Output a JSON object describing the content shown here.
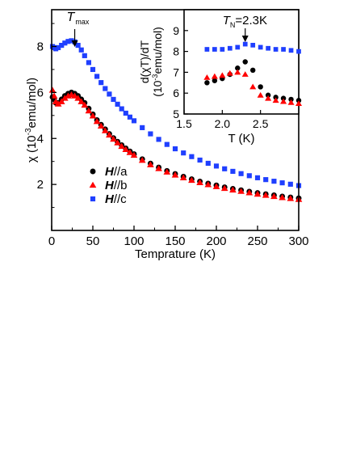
{
  "chart_data": [
    {
      "type": "scatter",
      "xlabel": "Temprature (K)",
      "ylabel": "χ (10",
      "ylabel_exp": "-3",
      "ylabel_tail": "emu/mol)",
      "xlim": [
        0,
        300
      ],
      "ylim": [
        0,
        9.6
      ],
      "xticks": [
        0,
        50,
        100,
        150,
        200,
        250,
        300
      ],
      "yticks": [
        2,
        4,
        6,
        8
      ],
      "annotation": {
        "text": "T",
        "sub": "max",
        "x": 28,
        "y": 8.25
      },
      "legend": {
        "placement": "lower-left",
        "entries": [
          {
            "bold": "H",
            "suffix": "//a"
          },
          {
            "bold": "H",
            "suffix": "//b"
          },
          {
            "bold": "H",
            "suffix": "//c"
          }
        ]
      },
      "series": [
        {
          "name": "H//a",
          "marker": "circle",
          "color": "#000000",
          "x": [
            1,
            3,
            5,
            8,
            12,
            16,
            20,
            24,
            28,
            32,
            36,
            40,
            45,
            50,
            55,
            60,
            65,
            70,
            75,
            80,
            85,
            90,
            95,
            100,
            110,
            120,
            130,
            140,
            150,
            160,
            170,
            180,
            190,
            200,
            210,
            220,
            230,
            240,
            250,
            260,
            270,
            280,
            290,
            300
          ],
          "y": [
            5.8,
            5.7,
            5.55,
            5.55,
            5.7,
            5.85,
            5.95,
            6.0,
            5.95,
            5.85,
            5.7,
            5.55,
            5.3,
            5.05,
            4.8,
            4.6,
            4.4,
            4.2,
            4.02,
            3.86,
            3.71,
            3.57,
            3.44,
            3.32,
            3.1,
            2.91,
            2.74,
            2.59,
            2.46,
            2.34,
            2.23,
            2.13,
            2.04,
            1.96,
            1.88,
            1.81,
            1.75,
            1.69,
            1.63,
            1.58,
            1.53,
            1.48,
            1.44,
            1.4
          ]
        },
        {
          "name": "H//b",
          "marker": "triangle",
          "color": "#ff0000",
          "x": [
            1,
            3,
            5,
            8,
            12,
            16,
            20,
            24,
            28,
            32,
            36,
            40,
            45,
            50,
            55,
            60,
            65,
            70,
            75,
            80,
            85,
            90,
            95,
            100,
            110,
            120,
            130,
            140,
            150,
            160,
            170,
            180,
            190,
            200,
            210,
            220,
            230,
            240,
            250,
            260,
            270,
            280,
            290,
            300
          ],
          "y": [
            6.1,
            5.85,
            5.6,
            5.5,
            5.6,
            5.75,
            5.85,
            5.9,
            5.85,
            5.75,
            5.6,
            5.45,
            5.2,
            4.98,
            4.74,
            4.54,
            4.34,
            4.15,
            3.97,
            3.81,
            3.66,
            3.52,
            3.39,
            3.27,
            3.05,
            2.86,
            2.69,
            2.54,
            2.41,
            2.29,
            2.18,
            2.08,
            1.99,
            1.91,
            1.83,
            1.76,
            1.7,
            1.64,
            1.58,
            1.53,
            1.48,
            1.43,
            1.39,
            1.35
          ]
        },
        {
          "name": "H//c",
          "marker": "square",
          "color": "#1f3fff",
          "x": [
            1,
            3,
            5,
            8,
            12,
            16,
            20,
            24,
            28,
            32,
            36,
            40,
            45,
            50,
            55,
            60,
            65,
            70,
            75,
            80,
            85,
            90,
            95,
            100,
            110,
            120,
            130,
            140,
            150,
            160,
            170,
            180,
            190,
            200,
            210,
            220,
            230,
            240,
            250,
            260,
            270,
            280,
            290,
            300
          ],
          "y": [
            8.0,
            7.95,
            7.9,
            7.95,
            8.05,
            8.15,
            8.22,
            8.25,
            8.2,
            8.05,
            7.85,
            7.6,
            7.3,
            7.0,
            6.7,
            6.43,
            6.17,
            5.93,
            5.7,
            5.49,
            5.29,
            5.1,
            4.93,
            4.77,
            4.47,
            4.2,
            3.96,
            3.74,
            3.55,
            3.37,
            3.21,
            3.06,
            2.92,
            2.8,
            2.68,
            2.57,
            2.47,
            2.38,
            2.29,
            2.21,
            2.14,
            2.07,
            2.01,
            1.95
          ]
        }
      ]
    },
    {
      "type": "scatter",
      "inset": true,
      "xlabel": "T (K)",
      "ylabel_line1": "d(χT)/dT",
      "ylabel_line2": "(10",
      "ylabel_exp": "-3",
      "ylabel_tail": "emu/mol)",
      "xlim": [
        1.5,
        3.0
      ],
      "ylim": [
        5,
        10
      ],
      "xticks": [
        1.5,
        2.0,
        2.5
      ],
      "yticks": [
        5,
        6,
        7,
        8,
        9
      ],
      "annotation": {
        "text": "T",
        "sub": "N",
        "tail": "=2.3K",
        "x": 2.3,
        "y": 8.3
      },
      "series": [
        {
          "name": "H//a",
          "marker": "circle",
          "color": "#000000",
          "x": [
            1.8,
            1.9,
            2.0,
            2.1,
            2.2,
            2.3,
            2.4,
            2.5,
            2.6,
            2.7,
            2.8,
            2.9,
            3.0
          ],
          "y": [
            6.5,
            6.6,
            6.7,
            6.9,
            7.2,
            7.5,
            7.1,
            6.3,
            5.9,
            5.8,
            5.75,
            5.7,
            5.65
          ]
        },
        {
          "name": "H//b",
          "marker": "triangle",
          "color": "#ff0000",
          "x": [
            1.8,
            1.9,
            2.0,
            2.1,
            2.2,
            2.3,
            2.4,
            2.5,
            2.6,
            2.7,
            2.8,
            2.9,
            3.0
          ],
          "y": [
            6.75,
            6.8,
            6.85,
            6.95,
            7.0,
            6.9,
            6.3,
            5.9,
            5.75,
            5.65,
            5.6,
            5.55,
            5.5
          ]
        },
        {
          "name": "H//c",
          "marker": "square",
          "color": "#1f3fff",
          "x": [
            1.8,
            1.9,
            2.0,
            2.1,
            2.2,
            2.3,
            2.4,
            2.5,
            2.6,
            2.7,
            2.8,
            2.9,
            3.0
          ],
          "y": [
            8.1,
            8.1,
            8.1,
            8.15,
            8.2,
            8.35,
            8.3,
            8.2,
            8.15,
            8.1,
            8.1,
            8.05,
            8.0
          ]
        }
      ]
    }
  ]
}
